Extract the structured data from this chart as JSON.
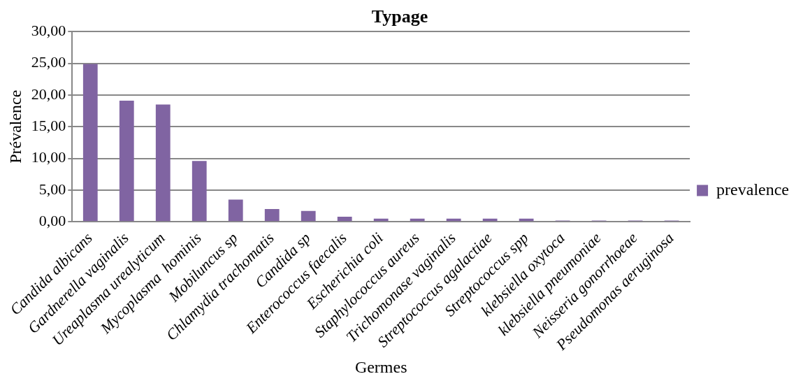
{
  "chart_data": {
    "type": "bar",
    "title": "Typage",
    "xlabel": "Germes",
    "ylabel": "Prévalence",
    "categories": [
      "Candida albicans",
      "Gardnerella vaginalis",
      "Ureaplasma urealyticum",
      "Mycoplasma  hominis",
      "Mobiluncus sp",
      "Chlamydia trachomatis",
      "Candida sp",
      "Enterococcus faecalis",
      "Escherichia coli",
      "Staphylococcus aureus",
      "Trichomonase vaginalis",
      "Streptococcus agalactiae",
      "Streptococcus spp",
      "klebsiella oxytoca",
      "klebsiella pneumoniae",
      "Neisseria gonorrhoeae",
      "Pseudomonas aeruginosa"
    ],
    "series": [
      {
        "name": "prevalence",
        "color": "#8064a2",
        "values": [
          24.9,
          19.1,
          18.5,
          9.6,
          3.5,
          2.0,
          1.7,
          0.8,
          0.5,
          0.5,
          0.5,
          0.5,
          0.5,
          0.2,
          0.2,
          0.2,
          0.2
        ]
      }
    ],
    "ylim": [
      0,
      30
    ],
    "yticks": [
      {
        "value": 0,
        "label": "0,00"
      },
      {
        "value": 5,
        "label": "5,00"
      },
      {
        "value": 10,
        "label": "10,00"
      },
      {
        "value": 15,
        "label": "15,00"
      },
      {
        "value": 20,
        "label": "20,00"
      },
      {
        "value": 25,
        "label": "25,00"
      },
      {
        "value": 30,
        "label": "30,00"
      }
    ],
    "grid": "y",
    "legend": "right"
  }
}
